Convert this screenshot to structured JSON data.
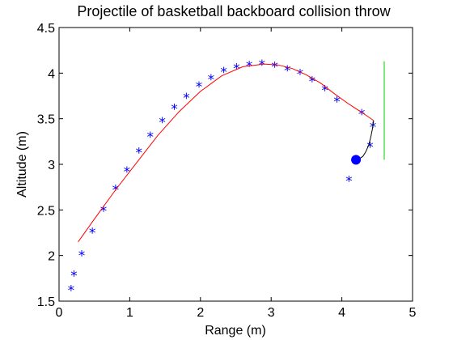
{
  "chart_data": {
    "type": "scatter",
    "title": "Projectile of basketball backboard collision throw",
    "xlabel": "Range (m)",
    "ylabel": "Altitude (m)",
    "xlim": [
      0,
      5
    ],
    "ylim": [
      1.5,
      4.5
    ],
    "xticks": [
      "0",
      "1",
      "2",
      "3",
      "4",
      "5"
    ],
    "yticks": [
      "1.5",
      "2",
      "2.5",
      "3",
      "3.5",
      "4",
      "4.5"
    ],
    "grid": false,
    "series": [
      {
        "kind": "markers",
        "marker": "asterisk",
        "color": "#0000ff",
        "x": [
          0.17,
          0.21,
          0.32,
          0.47,
          0.63,
          0.8,
          0.96,
          1.13,
          1.29,
          1.46,
          1.63,
          1.8,
          1.98,
          2.15,
          2.33,
          2.51,
          2.69,
          2.87,
          3.05,
          3.23,
          3.41,
          3.58,
          3.76,
          3.93,
          4.1,
          4.2,
          4.28,
          4.4,
          4.44
        ],
        "y": [
          1.62,
          1.78,
          2.0,
          2.25,
          2.49,
          2.72,
          2.92,
          3.13,
          3.3,
          3.46,
          3.61,
          3.73,
          3.85,
          3.93,
          4.01,
          4.05,
          4.08,
          4.09,
          4.07,
          4.03,
          3.99,
          3.91,
          3.81,
          3.69,
          2.82,
          3.01,
          3.55,
          3.19,
          3.41
        ]
      },
      {
        "kind": "line",
        "color": "#ff0000",
        "x": [
          0.27,
          0.5,
          0.8,
          1.1,
          1.4,
          1.7,
          2.0,
          2.3,
          2.6,
          2.9,
          3.1,
          3.3,
          3.5,
          3.7,
          3.9,
          4.1,
          4.3,
          4.45
        ],
        "y": [
          2.15,
          2.4,
          2.72,
          3.02,
          3.32,
          3.58,
          3.8,
          3.97,
          4.07,
          4.1,
          4.09,
          4.05,
          3.98,
          3.89,
          3.77,
          3.66,
          3.56,
          3.48
        ]
      },
      {
        "kind": "line",
        "color": "#000000",
        "x": [
          4.45,
          4.43,
          4.41,
          4.38,
          4.34,
          4.3,
          4.25,
          4.21
        ],
        "y": [
          3.48,
          3.38,
          3.3,
          3.21,
          3.14,
          3.09,
          3.06,
          3.05
        ]
      },
      {
        "kind": "line",
        "color": "#00cc00",
        "x": [
          4.6,
          4.6
        ],
        "y": [
          3.05,
          4.13
        ]
      },
      {
        "kind": "markers",
        "marker": "filled-circle",
        "color": "#0000ff",
        "x": [
          4.2
        ],
        "y": [
          3.05
        ]
      }
    ]
  }
}
